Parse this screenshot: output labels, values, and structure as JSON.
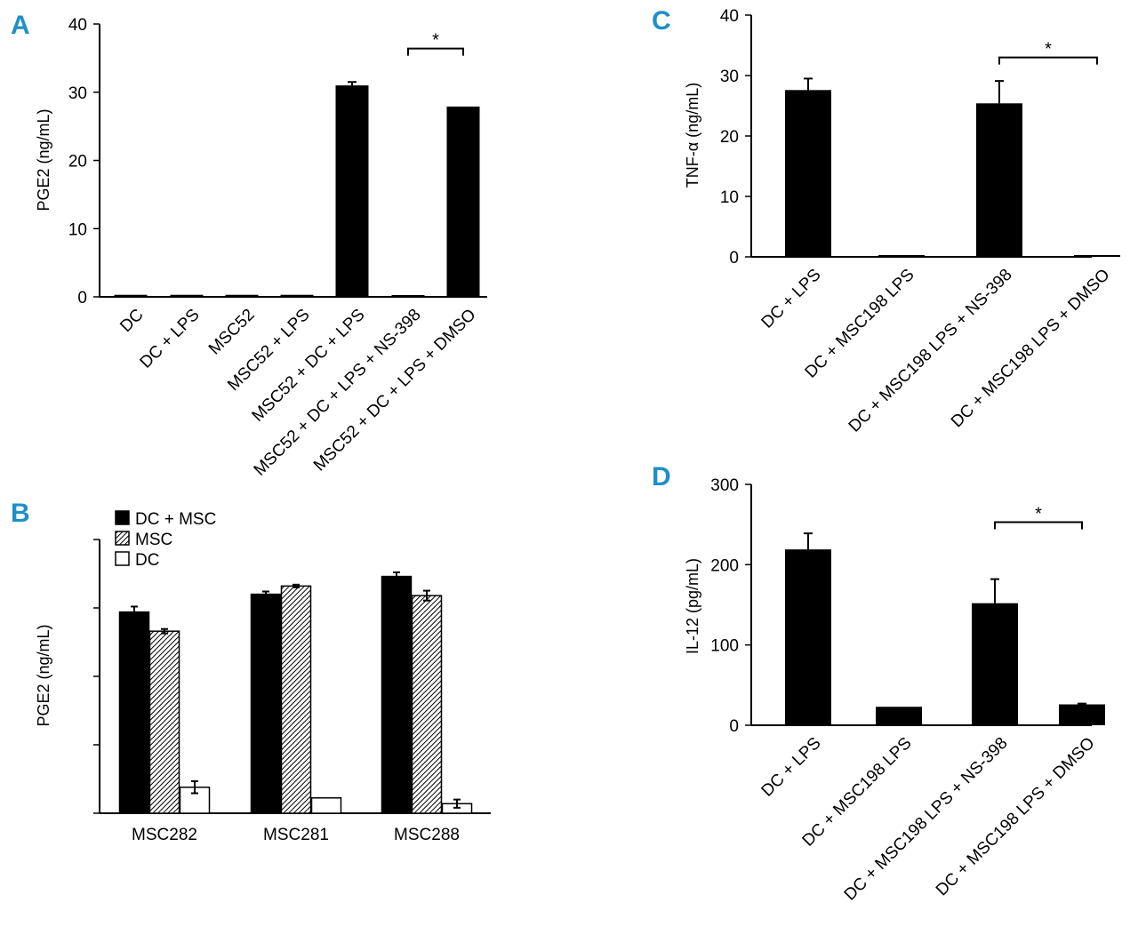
{
  "panels": [
    {
      "id": "A",
      "label": "A",
      "chart_data": {
        "type": "bar",
        "ylabel": "PGE2 (ng/mL)",
        "ylim": [
          0,
          40
        ],
        "yticks": [
          0,
          10,
          20,
          30,
          40
        ],
        "categories": [
          "DC",
          "DC + LPS",
          "MSC52",
          "MSC52 + LPS",
          "MSC52 + DC + LPS",
          "MSC52 + DC + LPS + NS-398",
          "MSC52 + DC + LPS + DMSO"
        ],
        "values": [
          0.3,
          0.3,
          0.3,
          0.3,
          31.0,
          0.1,
          27.9
        ],
        "errors": [
          0,
          0,
          0,
          0,
          0.5,
          0,
          0
        ],
        "significance": [
          {
            "from": 5,
            "to": 6,
            "label": "*",
            "y": 36.4
          }
        ]
      }
    },
    {
      "id": "B",
      "label": "B",
      "chart_data": {
        "type": "bar",
        "ylabel": "PGE2 (ng/mL)",
        "ylim": [
          0,
          100
        ],
        "yticks": [
          0,
          25,
          50,
          75,
          100
        ],
        "show_tick_labels": false,
        "categories": [
          "MSC282",
          "MSC281",
          "MSC288"
        ],
        "series": [
          {
            "name": "DC + MSC",
            "fill": "solid",
            "values": [
              73.5,
              80.0,
              86.5
            ],
            "errors": [
              2.0,
              1.0,
              1.5
            ]
          },
          {
            "name": "MSC",
            "fill": "hatched",
            "values": [
              66.5,
              83.0,
              79.5
            ],
            "errors": [
              0.8,
              0.5,
              1.8
            ]
          },
          {
            "name": "DC",
            "fill": "white",
            "values": [
              9.5,
              5.6,
              3.5
            ],
            "errors": [
              2.2,
              0,
              1.5
            ]
          }
        ]
      }
    },
    {
      "id": "C",
      "label": "C",
      "chart_data": {
        "type": "bar",
        "ylabel": "TNF-α (ng/mL)",
        "ylim": [
          0,
          40
        ],
        "yticks": [
          0,
          10,
          20,
          30,
          40
        ],
        "categories": [
          "DC + LPS",
          "DC +  MSC198  LPS",
          "DC +  MSC198  LPS + NS-398",
          "DC +  MSC198  LPS + DMSO"
        ],
        "values": [
          27.6,
          0.3,
          25.4,
          0.3
        ],
        "errors": [
          1.9,
          0,
          3.7,
          0
        ],
        "significance": [
          {
            "from": 2,
            "to": 3,
            "label": "*",
            "y": 33.0
          }
        ]
      }
    },
    {
      "id": "D",
      "label": "D",
      "chart_data": {
        "type": "bar",
        "ylabel": "IL-12 (pg/mL)",
        "ylim": [
          0,
          300
        ],
        "yticks": [
          0,
          100,
          200,
          300
        ],
        "categories": [
          "DC + LPS",
          "DC +  MSC198  LPS",
          "DC +  MSC198  LPS + NS-398",
          "DC +  MSC198  LPS + DMSO"
        ],
        "values": [
          219,
          23,
          152,
          26
        ],
        "errors": [
          20,
          0,
          30,
          1
        ],
        "significance": [
          {
            "from": 2,
            "to": 3,
            "label": "*",
            "y": 253
          }
        ]
      }
    }
  ]
}
